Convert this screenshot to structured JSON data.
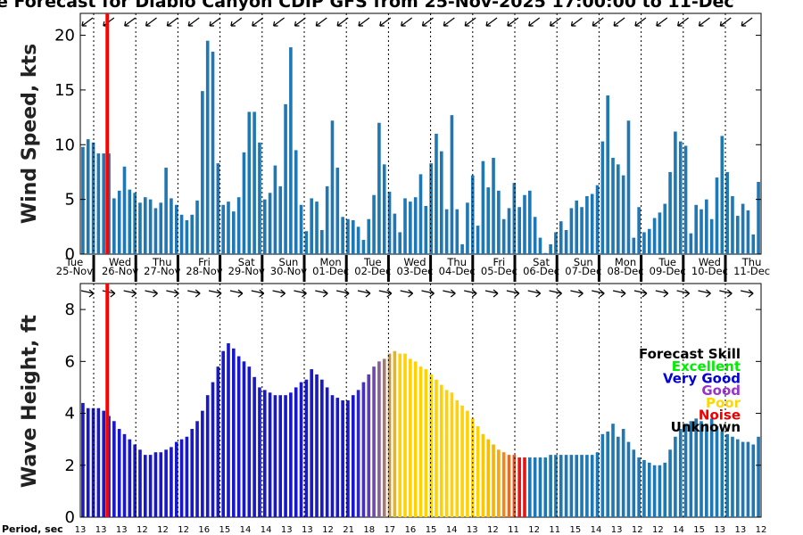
{
  "title": "e Forecast for Diablo Canyon CDIP GFS from 25-Nov-2025 17:00:00 to 11-Dec",
  "colors": {
    "bar": "#1f77b4",
    "now_line": "#ff0000",
    "very_good": "#0000cc",
    "good": "#7b3fb8",
    "poor": "#ffd700",
    "noise": "#ee0000"
  },
  "day_labels": [
    {
      "dow": "Tue",
      "date": "25-Nov"
    },
    {
      "dow": "Wed",
      "date": "26-Nov"
    },
    {
      "dow": "Thu",
      "date": "27-Nov"
    },
    {
      "dow": "Fri",
      "date": "28-Nov"
    },
    {
      "dow": "Sat",
      "date": "29-Nov"
    },
    {
      "dow": "Sun",
      "date": "30-Nov"
    },
    {
      "dow": "Mon",
      "date": "01-Dec"
    },
    {
      "dow": "Tue",
      "date": "02-Dec"
    },
    {
      "dow": "Wed",
      "date": "03-Dec"
    },
    {
      "dow": "Thu",
      "date": "04-Dec"
    },
    {
      "dow": "Fri",
      "date": "05-Dec"
    },
    {
      "dow": "Sat",
      "date": "06-Dec"
    },
    {
      "dow": "Sun",
      "date": "07-Dec"
    },
    {
      "dow": "Mon",
      "date": "08-Dec"
    },
    {
      "dow": "Tue",
      "date": "09-Dec"
    },
    {
      "dow": "Wed",
      "date": "10-Dec"
    },
    {
      "dow": "Thu",
      "date": "11-Dec"
    }
  ],
  "period_label": "Period, sec",
  "period_values": [
    "13",
    "13",
    "13",
    "12",
    "12",
    "12",
    "16",
    "15",
    "14",
    "14",
    "13",
    "13",
    "12",
    "21",
    "18",
    "17",
    "16",
    "15",
    "14",
    "13",
    "12",
    "11",
    "12",
    "11",
    "15",
    "14",
    "13",
    "12",
    "12",
    "14",
    "15",
    "13",
    "13",
    "12"
  ],
  "legend": {
    "title": "Forecast Skill",
    "items": [
      {
        "label": "Excellent",
        "color": "#00ee00"
      },
      {
        "label": "Very Good",
        "color": "#0000dd"
      },
      {
        "label": "Good",
        "color": "#9933cc"
      },
      {
        "label": "Poor",
        "color": "#ffd700"
      },
      {
        "label": "Noise",
        "color": "#ee0000"
      },
      {
        "label": "Unknown",
        "color": "#000000"
      }
    ]
  },
  "chart_data": [
    {
      "type": "bar",
      "ylabel": "Wind Speed, kts",
      "ylim": [
        0,
        22
      ],
      "yticks": [
        0,
        5,
        10,
        15,
        20
      ],
      "grid": false,
      "now_index": 5,
      "values": [
        9.8,
        10.5,
        10.2,
        9.2,
        9.2,
        9.2,
        5.1,
        5.8,
        8.0,
        5.9,
        5.6,
        4.7,
        5.2,
        5.0,
        4.2,
        4.7,
        7.9,
        5.1,
        4.5,
        3.6,
        3.1,
        3.6,
        4.9,
        14.9,
        19.5,
        18.5,
        8.3,
        4.5,
        4.8,
        3.9,
        5.2,
        9.3,
        13.0,
        13.0,
        10.2,
        5.0,
        5.6,
        8.1,
        6.2,
        13.7,
        18.9,
        9.5,
        4.5,
        2.1,
        5.1,
        4.8,
        2.2,
        6.2,
        12.2,
        7.9,
        3.4,
        3.2,
        3.1,
        2.5,
        1.3,
        3.2,
        5.4,
        12.0,
        8.2,
        5.7,
        3.7,
        2.0,
        5.1,
        4.8,
        5.2,
        7.3,
        4.4,
        8.3,
        11.0,
        9.4,
        4.1,
        12.7,
        4.1,
        0.9,
        4.7,
        7.2,
        2.6,
        8.5,
        6.1,
        8.8,
        5.8,
        3.2,
        4.2,
        6.5,
        4.3,
        5.4,
        5.8,
        3.4,
        1.5,
        0.1,
        0.9,
        2.0,
        3.0,
        2.2,
        4.2,
        4.9,
        4.3,
        5.3,
        5.5,
        6.3,
        10.3,
        14.5,
        8.8,
        8.2,
        7.2,
        12.2,
        1.5,
        4.3,
        2.0,
        2.3,
        3.3,
        3.8,
        4.6,
        7.5,
        11.2,
        10.3,
        9.9,
        1.9,
        4.5,
        4.1,
        5.0,
        3.2,
        7.0,
        10.8,
        7.5,
        5.3,
        3.5,
        4.6,
        4.0,
        1.8,
        6.6
      ],
      "wind_arrows": "pointing down-left (northwesterly wind)"
    },
    {
      "type": "bar",
      "ylabel": "Wave Height, ft",
      "ylim": [
        0,
        9
      ],
      "yticks": [
        0,
        2,
        4,
        6,
        8
      ],
      "grid": false,
      "now_index": 5,
      "values": [
        4.4,
        4.2,
        4.2,
        4.2,
        4.1,
        3.9,
        3.7,
        3.4,
        3.2,
        3.0,
        2.8,
        2.6,
        2.4,
        2.4,
        2.5,
        2.5,
        2.6,
        2.7,
        2.9,
        3.0,
        3.1,
        3.4,
        3.7,
        4.1,
        4.7,
        5.2,
        5.8,
        6.4,
        6.7,
        6.5,
        6.2,
        6.0,
        5.8,
        5.4,
        5.0,
        4.9,
        4.8,
        4.7,
        4.7,
        4.7,
        4.8,
        5.0,
        5.2,
        5.3,
        5.7,
        5.5,
        5.3,
        5.0,
        4.7,
        4.6,
        4.5,
        4.5,
        4.7,
        4.9,
        5.2,
        5.5,
        5.8,
        6.0,
        6.1,
        6.3,
        6.4,
        6.3,
        6.3,
        6.1,
        6.0,
        5.8,
        5.7,
        5.5,
        5.3,
        5.1,
        4.9,
        4.8,
        4.5,
        4.3,
        4.1,
        3.8,
        3.5,
        3.2,
        3.0,
        2.8,
        2.6,
        2.5,
        2.4,
        2.4,
        2.3,
        2.3,
        2.3,
        2.3,
        2.3,
        2.3,
        2.4,
        2.4,
        2.4,
        2.4,
        2.4,
        2.4,
        2.4,
        2.4,
        2.4,
        2.5,
        3.2,
        3.3,
        3.6,
        3.1,
        3.4,
        2.9,
        2.6,
        2.3,
        2.2,
        2.1,
        2.0,
        2.0,
        2.1,
        2.6,
        3.1,
        3.4,
        3.6,
        3.7,
        3.8,
        3.7,
        3.6,
        3.8,
        3.5,
        3.3,
        3.2,
        3.1,
        3.0,
        2.9,
        2.9,
        2.8,
        3.1
      ],
      "wave_arrows": "pointing right / east-southeast (waves from the west)"
    }
  ]
}
